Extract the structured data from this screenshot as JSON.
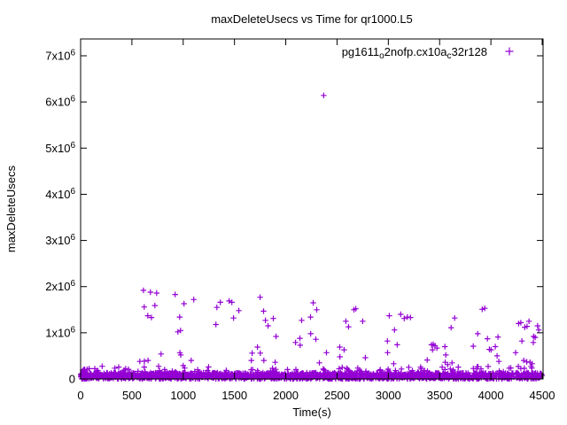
{
  "window": {
    "background": "#ffffff"
  },
  "chart_data": {
    "type": "scatter",
    "title": "maxDeleteUsecs vs Time for qr1000.L5",
    "xlabel": "Time(s)",
    "ylabel": "maxDeleteUsecs",
    "grid": false,
    "color": "#9400d3",
    "axis_color": "#000000",
    "marker": "plus",
    "xlim": [
      0,
      4509
    ],
    "ylim": [
      0,
      7365000
    ],
    "legend": {
      "series_name": "pg1611_o2nofp.cx10a_c32r128",
      "segments": {
        "part1": "pg1611",
        "sub1": "o",
        "part2": "2nofp.cx10a",
        "sub2": "c",
        "part3": "32r128"
      },
      "position": "top-right-inside"
    },
    "x_ticks": [
      {
        "value": 0,
        "label": "0"
      },
      {
        "value": 500,
        "label": "500"
      },
      {
        "value": 1000,
        "label": "1000"
      },
      {
        "value": 1500,
        "label": "1500"
      },
      {
        "value": 2000,
        "label": "2000"
      },
      {
        "value": 2500,
        "label": "2500"
      },
      {
        "value": 3000,
        "label": "3000"
      },
      {
        "value": 3500,
        "label": "3500"
      },
      {
        "value": 4000,
        "label": "4000"
      },
      {
        "value": 4500,
        "label": "4500"
      }
    ],
    "y_ticks": [
      {
        "value": 0,
        "label": "0"
      },
      {
        "value": 1000000,
        "label": "1x10^6"
      },
      {
        "value": 2000000,
        "label": "2x10^6"
      },
      {
        "value": 3000000,
        "label": "3x10^6"
      },
      {
        "value": 4000000,
        "label": "4x10^6"
      },
      {
        "value": 5000000,
        "label": "5x10^6"
      },
      {
        "value": 6000000,
        "label": "6x10^6"
      },
      {
        "value": 7000000,
        "label": "7x10^6"
      }
    ],
    "points_outliers": [
      [
        2370,
        6140000
      ],
      [
        612,
        1920000
      ],
      [
        681,
        1880000
      ],
      [
        741,
        1860000
      ],
      [
        620,
        1560000
      ],
      [
        724,
        1590000
      ],
      [
        655,
        1370000
      ],
      [
        690,
        1330000
      ],
      [
        577,
        380000
      ],
      [
        622,
        385000
      ],
      [
        657,
        400000
      ],
      [
        784,
        540000
      ],
      [
        922,
        1830000
      ],
      [
        1008,
        1630000
      ],
      [
        1103,
        1720000
      ],
      [
        966,
        1340000
      ],
      [
        948,
        1020000
      ],
      [
        974,
        1050000
      ],
      [
        968,
        570000
      ],
      [
        976,
        520000
      ],
      [
        1000,
        290000
      ],
      [
        1078,
        400000
      ],
      [
        1328,
        1550000
      ],
      [
        1362,
        1660000
      ],
      [
        1448,
        1690000
      ],
      [
        1474,
        1660000
      ],
      [
        1319,
        1180000
      ],
      [
        1491,
        1320000
      ],
      [
        1543,
        1480000
      ],
      [
        1750,
        1770000
      ],
      [
        1784,
        1470000
      ],
      [
        1802,
        1270000
      ],
      [
        1828,
        1150000
      ],
      [
        1879,
        1310000
      ],
      [
        1905,
        920000
      ],
      [
        1724,
        690000
      ],
      [
        1752,
        560000
      ],
      [
        1672,
        560000
      ],
      [
        1664,
        400000
      ],
      [
        1786,
        400000
      ],
      [
        1897,
        360000
      ],
      [
        1871,
        230000
      ],
      [
        2095,
        790000
      ],
      [
        2138,
        880000
      ],
      [
        2140,
        730000
      ],
      [
        2155,
        1270000
      ],
      [
        2241,
        1340000
      ],
      [
        2267,
        1650000
      ],
      [
        2302,
        1500000
      ],
      [
        2243,
        980000
      ],
      [
        2293,
        860000
      ],
      [
        2328,
        350000
      ],
      [
        2397,
        570000
      ],
      [
        2526,
        690000
      ],
      [
        2528,
        480000
      ],
      [
        2569,
        630000
      ],
      [
        2586,
        1250000
      ],
      [
        2595,
        230000
      ],
      [
        2612,
        1130000
      ],
      [
        2614,
        190000
      ],
      [
        2665,
        1500000
      ],
      [
        2683,
        1520000
      ],
      [
        2750,
        1250000
      ],
      [
        2776,
        460000
      ],
      [
        2991,
        820000
      ],
      [
        2993,
        570000
      ],
      [
        3009,
        1370000
      ],
      [
        3052,
        330000
      ],
      [
        3060,
        1060000
      ],
      [
        3086,
        740000
      ],
      [
        3121,
        1400000
      ],
      [
        3155,
        1310000
      ],
      [
        3185,
        1340000
      ],
      [
        3216,
        1330000
      ],
      [
        3379,
        410000
      ],
      [
        3420,
        740000
      ],
      [
        3438,
        750000
      ],
      [
        3455,
        720000
      ],
      [
        3431,
        630000
      ],
      [
        3474,
        670000
      ],
      [
        3552,
        700000
      ],
      [
        3560,
        520000
      ],
      [
        3554,
        360000
      ],
      [
        3578,
        310000
      ],
      [
        3621,
        350000
      ],
      [
        3612,
        1110000
      ],
      [
        3647,
        1320000
      ],
      [
        3828,
        710000
      ],
      [
        3871,
        980000
      ],
      [
        3915,
        1510000
      ],
      [
        3940,
        1530000
      ],
      [
        3966,
        870000
      ],
      [
        3985,
        640000
      ],
      [
        4002,
        630000
      ],
      [
        4043,
        700000
      ],
      [
        4060,
        500000
      ],
      [
        4069,
        910000
      ],
      [
        4078,
        380000
      ],
      [
        4241,
        570000
      ],
      [
        4270,
        1200000
      ],
      [
        4292,
        1220000
      ],
      [
        4302,
        820000
      ],
      [
        4330,
        1120000
      ],
      [
        4352,
        1140000
      ],
      [
        4371,
        1250000
      ],
      [
        4320,
        400000
      ],
      [
        4350,
        370000
      ],
      [
        4382,
        360000
      ],
      [
        4402,
        330000
      ],
      [
        4414,
        790000
      ],
      [
        4416,
        920000
      ],
      [
        4432,
        900000
      ],
      [
        4455,
        1150000
      ],
      [
        4466,
        1060000
      ]
    ],
    "dense_band": {
      "description": "dense noise band of maxDeleteUsecs samples hugging zero across the whole time range",
      "seed": 7,
      "count": 1800,
      "t_range": [
        0,
        4500
      ],
      "value_range": [
        0,
        135000
      ],
      "fringe_count": 90,
      "fringe_value_range": [
        135000,
        280000
      ]
    }
  }
}
